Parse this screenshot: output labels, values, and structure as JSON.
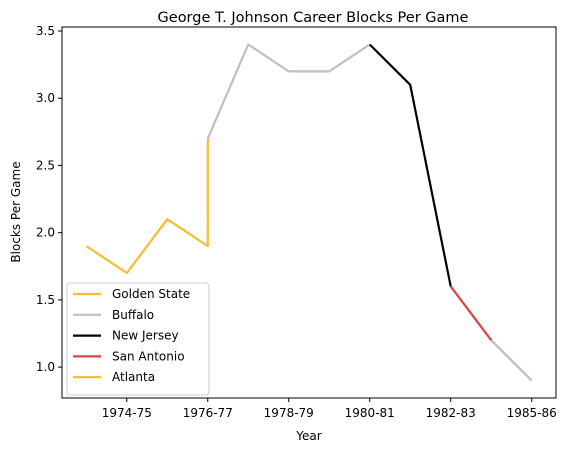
{
  "chart_data": {
    "type": "line",
    "title": "George T. Johnson Career Blocks Per Game",
    "xlabel": "Year",
    "ylabel": "Blocks Per Game",
    "x_tick_labels": [
      "1974-75",
      "1976-77",
      "1978-79",
      "1980-81",
      "1982-83",
      "1985-86"
    ],
    "x_tick_positions": [
      1,
      3,
      5,
      7,
      9,
      11
    ],
    "xlim": [
      -0.6,
      11.6
    ],
    "ylim": [
      0.77,
      3.53
    ],
    "y_ticks": [
      1.0,
      1.5,
      2.0,
      2.5,
      3.0,
      3.5
    ],
    "y_tick_labels": [
      "1.0",
      "1.5",
      "2.0",
      "2.5",
      "3.0",
      "3.5"
    ],
    "grid": false,
    "legend_position": "lower-left",
    "series": [
      {
        "name": "Golden State",
        "color": "#fbbc2b",
        "x": [
          0,
          1,
          2,
          3,
          3
        ],
        "y": [
          1.9,
          1.7,
          2.1,
          1.9,
          2.7
        ]
      },
      {
        "name": "Buffalo",
        "color": "#bfbfbf",
        "x": [
          3,
          4,
          5,
          6,
          7
        ],
        "y": [
          2.7,
          3.4,
          3.2,
          3.2,
          3.4
        ]
      },
      {
        "name": "New Jersey",
        "color": "#000000",
        "x": [
          7,
          8,
          9
        ],
        "y": [
          3.4,
          3.1,
          1.6
        ]
      },
      {
        "name": "San Antonio",
        "color": "#e0413e",
        "x": [
          9,
          10
        ],
        "y": [
          1.6,
          1.2
        ]
      },
      {
        "name": "Atlanta",
        "color": "#fbbc2b",
        "x": [
          10,
          11
        ],
        "y": [
          1.2,
          0.9
        ]
      },
      {
        "name": "",
        "color": "#bfbfbf",
        "x": [
          10,
          11
        ],
        "y": [
          1.2,
          0.9
        ]
      }
    ]
  }
}
